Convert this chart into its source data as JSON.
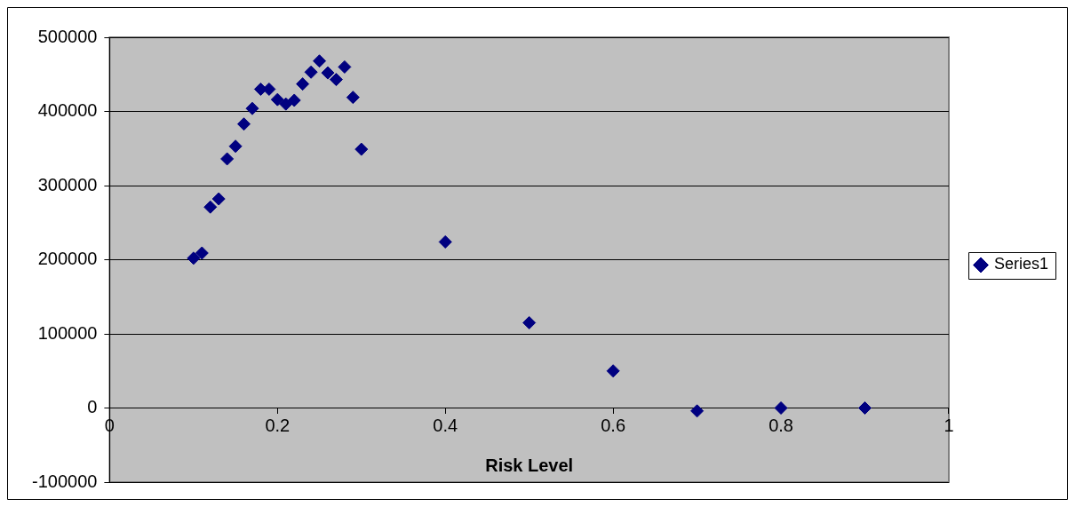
{
  "chart_data": {
    "type": "scatter",
    "xlabel": "Risk Level",
    "x": [
      0.1,
      0.11,
      0.12,
      0.13,
      0.14,
      0.15,
      0.16,
      0.17,
      0.18,
      0.19,
      0.2,
      0.21,
      0.22,
      0.23,
      0.24,
      0.25,
      0.26,
      0.27,
      0.28,
      0.29,
      0.3,
      0.4,
      0.5,
      0.6,
      0.7,
      0.8,
      0.9
    ],
    "series": [
      {
        "name": "Series1",
        "color": "#000080",
        "values": [
          202000,
          209000,
          271000,
          282000,
          336000,
          353000,
          383000,
          404000,
          430000,
          430000,
          416000,
          410000,
          415000,
          437000,
          453000,
          468000,
          452000,
          443000,
          460000,
          419000,
          349000,
          224000,
          115000,
          50000,
          -4000,
          0,
          0
        ]
      }
    ],
    "xlim": [
      0,
      1
    ],
    "xticks": [
      0,
      0.2,
      0.4,
      0.6,
      0.8,
      1
    ],
    "ylim": [
      -100000,
      500000
    ],
    "yticks": [
      -100000,
      0,
      100000,
      200000,
      300000,
      400000,
      500000
    ],
    "grid": "y",
    "legend": "right",
    "marker": "diamond"
  }
}
